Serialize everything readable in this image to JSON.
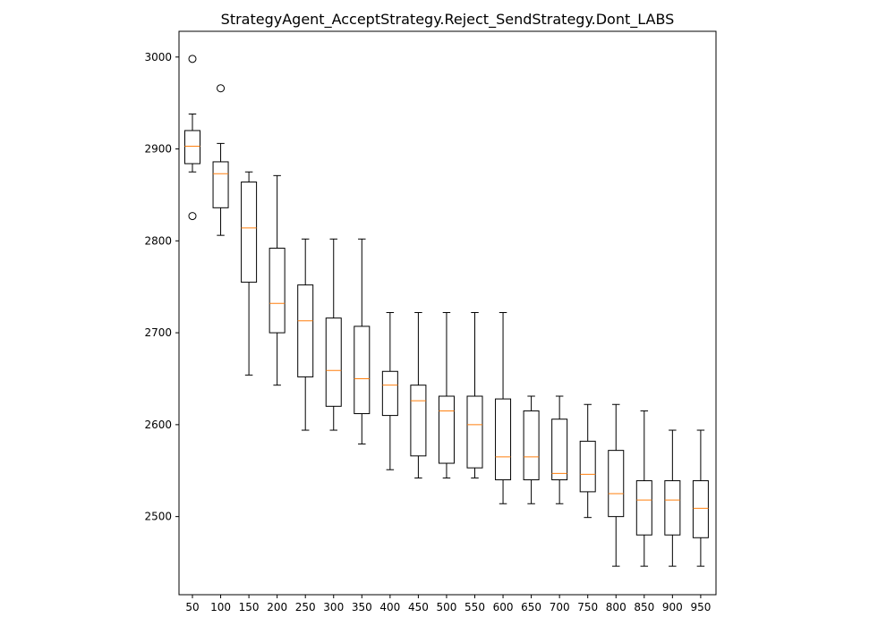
{
  "chart_data": {
    "type": "box",
    "title": "StrategyAgent_AcceptStrategy.Reject_SendStrategy.Dont_LABS",
    "xlabel": "",
    "ylabel": "",
    "ylim": [
      2415,
      3028
    ],
    "y_ticks": [
      2500,
      2600,
      2700,
      2800,
      2900,
      3000
    ],
    "categories": [
      "50",
      "100",
      "150",
      "200",
      "250",
      "300",
      "350",
      "400",
      "450",
      "500",
      "550",
      "600",
      "650",
      "700",
      "750",
      "800",
      "850",
      "900",
      "950"
    ],
    "boxes": [
      {
        "x": "50",
        "whisker_low": 2875,
        "q1": 2884,
        "median": 2903,
        "q3": 2920,
        "whisker_high": 2938,
        "outliers": [
          2998,
          2827
        ]
      },
      {
        "x": "100",
        "whisker_low": 2806,
        "q1": 2836,
        "median": 2873,
        "q3": 2886,
        "whisker_high": 2906,
        "outliers": [
          2966
        ]
      },
      {
        "x": "150",
        "whisker_low": 2654,
        "q1": 2755,
        "median": 2814,
        "q3": 2864,
        "whisker_high": 2875,
        "outliers": []
      },
      {
        "x": "200",
        "whisker_low": 2643,
        "q1": 2700,
        "median": 2732,
        "q3": 2792,
        "whisker_high": 2871,
        "outliers": []
      },
      {
        "x": "250",
        "whisker_low": 2594,
        "q1": 2652,
        "median": 2713,
        "q3": 2752,
        "whisker_high": 2802,
        "outliers": []
      },
      {
        "x": "300",
        "whisker_low": 2594,
        "q1": 2620,
        "median": 2659,
        "q3": 2716,
        "whisker_high": 2802,
        "outliers": []
      },
      {
        "x": "350",
        "whisker_low": 2579,
        "q1": 2612,
        "median": 2650,
        "q3": 2707,
        "whisker_high": 2802,
        "outliers": []
      },
      {
        "x": "400",
        "whisker_low": 2551,
        "q1": 2610,
        "median": 2643,
        "q3": 2658,
        "whisker_high": 2722,
        "outliers": []
      },
      {
        "x": "450",
        "whisker_low": 2542,
        "q1": 2566,
        "median": 2626,
        "q3": 2643,
        "whisker_high": 2722,
        "outliers": []
      },
      {
        "x": "500",
        "whisker_low": 2542,
        "q1": 2558,
        "median": 2615,
        "q3": 2631,
        "whisker_high": 2722,
        "outliers": []
      },
      {
        "x": "550",
        "whisker_low": 2542,
        "q1": 2553,
        "median": 2600,
        "q3": 2631,
        "whisker_high": 2722,
        "outliers": []
      },
      {
        "x": "600",
        "whisker_low": 2514,
        "q1": 2540,
        "median": 2565,
        "q3": 2628,
        "whisker_high": 2722,
        "outliers": []
      },
      {
        "x": "650",
        "whisker_low": 2514,
        "q1": 2540,
        "median": 2565,
        "q3": 2615,
        "whisker_high": 2631,
        "outliers": []
      },
      {
        "x": "700",
        "whisker_low": 2514,
        "q1": 2540,
        "median": 2547,
        "q3": 2606,
        "whisker_high": 2631,
        "outliers": []
      },
      {
        "x": "750",
        "whisker_low": 2499,
        "q1": 2527,
        "median": 2546,
        "q3": 2582,
        "whisker_high": 2622,
        "outliers": []
      },
      {
        "x": "800",
        "whisker_low": 2446,
        "q1": 2500,
        "median": 2525,
        "q3": 2572,
        "whisker_high": 2622,
        "outliers": []
      },
      {
        "x": "850",
        "whisker_low": 2446,
        "q1": 2480,
        "median": 2518,
        "q3": 2539,
        "whisker_high": 2615,
        "outliers": []
      },
      {
        "x": "900",
        "whisker_low": 2446,
        "q1": 2480,
        "median": 2518,
        "q3": 2539,
        "whisker_high": 2594,
        "outliers": []
      },
      {
        "x": "950",
        "whisker_low": 2446,
        "q1": 2477,
        "median": 2509,
        "q3": 2539,
        "whisker_high": 2594,
        "outliers": []
      }
    ],
    "colors": {
      "box": "#000000",
      "median": "#ff7f0e",
      "axes": "#000000",
      "background": "#ffffff"
    },
    "grid": false,
    "legend": "none"
  }
}
